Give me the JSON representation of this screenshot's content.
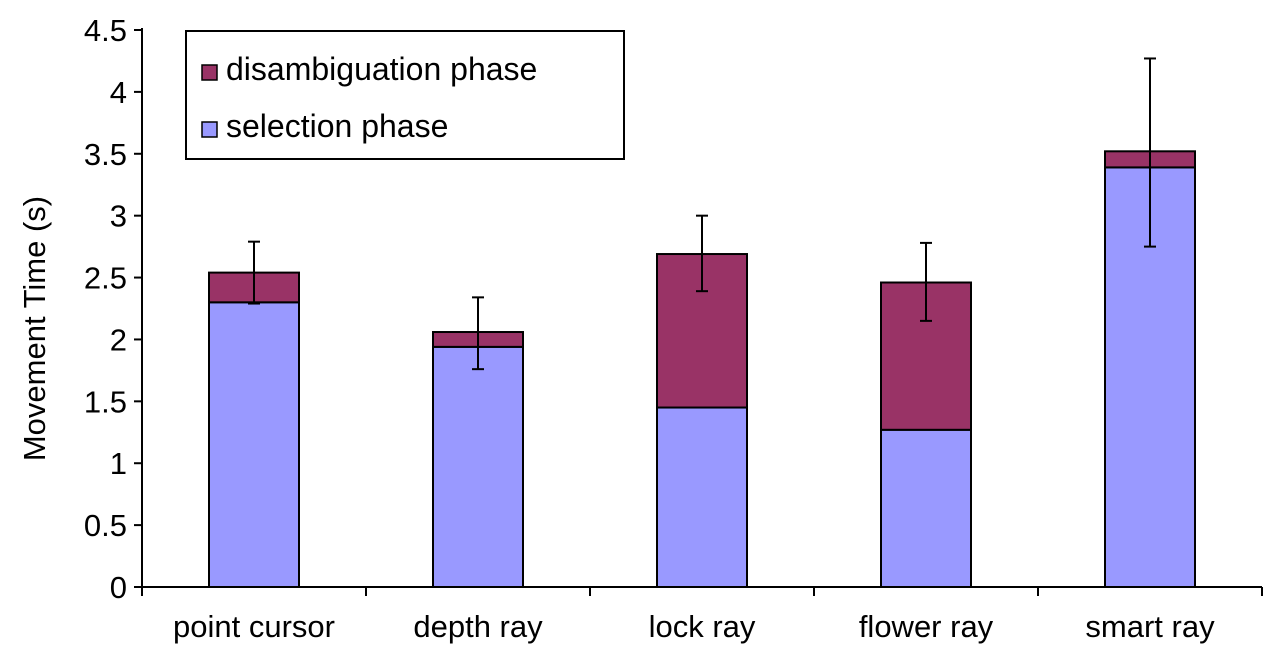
{
  "chart_data": {
    "type": "bar",
    "stacked": true,
    "ylabel": "Movement Time (s)",
    "xlabel": "",
    "ylim": [
      0,
      4.5
    ],
    "yticks": [
      "0",
      "0.5",
      "1",
      "1.5",
      "2",
      "2.5",
      "3",
      "3.5",
      "4",
      "4.5"
    ],
    "yticks_values": [
      0,
      0.5,
      1,
      1.5,
      2,
      2.5,
      3,
      3.5,
      4,
      4.5
    ],
    "categories": [
      "point cursor",
      "depth ray",
      "lock ray",
      "flower ray",
      "smart ray"
    ],
    "series": [
      {
        "name": "selection phase",
        "color": "#9999ff",
        "values": [
          2.3,
          1.94,
          1.45,
          1.27,
          3.39
        ]
      },
      {
        "name": "disambiguation phase",
        "color": "#993366",
        "values": [
          0.24,
          0.12,
          1.24,
          1.19,
          0.13
        ]
      }
    ],
    "error_bars": [
      {
        "low": 2.29,
        "high": 2.79
      },
      {
        "low": 1.76,
        "high": 2.34
      },
      {
        "low": 2.39,
        "high": 3.0
      },
      {
        "low": 2.15,
        "high": 2.78
      },
      {
        "low": 2.75,
        "high": 4.27
      }
    ],
    "legend": {
      "position": "top-left",
      "order": [
        "disambiguation phase",
        "selection phase"
      ]
    },
    "grid": false
  }
}
